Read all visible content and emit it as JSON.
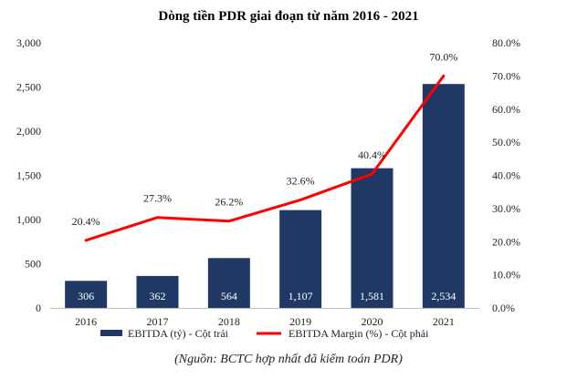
{
  "chart_data": {
    "type": "bar",
    "title": "Dòng tiền PDR giai đoạn từ năm 2016 - 2021",
    "categories": [
      "2016",
      "2017",
      "2018",
      "2019",
      "2020",
      "2021"
    ],
    "series": [
      {
        "name": "EBITDA (tỷ) - Cột trái",
        "type": "bar",
        "axis": "left",
        "values": [
          306,
          362,
          564,
          1107,
          1581,
          2534
        ],
        "labels": [
          "306",
          "362",
          "564",
          "1,107",
          "1,581",
          "2,534"
        ],
        "color": "#1F3864"
      },
      {
        "name": "EBITDA Margin (%) - Cột phải",
        "type": "line",
        "axis": "right",
        "values": [
          20.4,
          27.3,
          26.2,
          32.6,
          40.4,
          70.0
        ],
        "labels": [
          "20.4%",
          "27.3%",
          "26.2%",
          "32.6%",
          "40.4%",
          "70.0%"
        ],
        "color": "#FF0000"
      }
    ],
    "y_left": {
      "ylim": [
        0,
        3000
      ],
      "ticks": [
        0,
        500,
        1000,
        1500,
        2000,
        2500,
        3000
      ],
      "tick_labels": [
        "0",
        "500",
        "1,000",
        "1,500",
        "2,000",
        "2,500",
        "3,000"
      ]
    },
    "y_right": {
      "ylim": [
        0,
        80
      ],
      "ticks": [
        0,
        10,
        20,
        30,
        40,
        50,
        60,
        70,
        80
      ],
      "tick_labels": [
        "0.0%",
        "10.0%",
        "20.0%",
        "30.0%",
        "40.0%",
        "50.0%",
        "60.0%",
        "70.0%",
        "80.0%"
      ]
    },
    "grid": false,
    "legend_position": "bottom"
  },
  "source_note": "(Nguồn: BCTC hợp nhất đã kiểm toán PDR)"
}
